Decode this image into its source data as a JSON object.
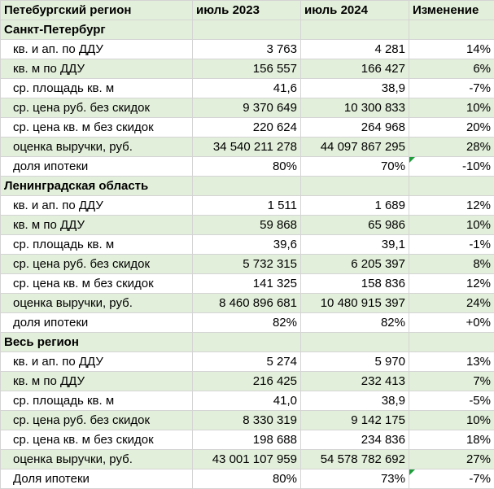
{
  "header": {
    "region": "Петебургский регион",
    "col_2023": "июль 2023",
    "col_2024": "июль 2024",
    "col_change": "Изменение"
  },
  "sections": [
    {
      "title": "Санкт-Петербург",
      "rows": [
        {
          "label": "кв. и ап. по ДДУ",
          "v2023": "3 763",
          "v2024": "4 281",
          "change": "14%"
        },
        {
          "label": "кв. м по ДДУ",
          "v2023": "156 557",
          "v2024": "166 427",
          "change": "6%"
        },
        {
          "label": "ср. площадь кв. м",
          "v2023": "41,6",
          "v2024": "38,9",
          "change": "-7%"
        },
        {
          "label": "ср. цена руб. без скидок",
          "v2023": "9 370 649",
          "v2024": "10 300 833",
          "change": "10%"
        },
        {
          "label": "ср. цена кв. м без скидок",
          "v2023": "220 624",
          "v2024": "264 968",
          "change": "20%"
        },
        {
          "label": "оценка выручки, руб.",
          "v2023": "34 540 211 278",
          "v2024": "44 097 867 295",
          "change": "28%"
        },
        {
          "label": "доля ипотеки",
          "v2023": "80%",
          "v2024": "70%",
          "change": "-10%"
        }
      ]
    },
    {
      "title": "Ленинградская область",
      "rows": [
        {
          "label": "кв. и ап. по ДДУ",
          "v2023": "1 511",
          "v2024": "1 689",
          "change": "12%"
        },
        {
          "label": "кв. м по ДДУ",
          "v2023": "59 868",
          "v2024": "65 986",
          "change": "10%"
        },
        {
          "label": "ср. площадь кв. м",
          "v2023": "39,6",
          "v2024": "39,1",
          "change": "-1%"
        },
        {
          "label": "ср. цена руб. без скидок",
          "v2023": "5 732 315",
          "v2024": "6 205 397",
          "change": "8%"
        },
        {
          "label": "ср. цена кв. м без скидок",
          "v2023": "141 325",
          "v2024": "158 836",
          "change": "12%"
        },
        {
          "label": "оценка выручки, руб.",
          "v2023": "8 460 896 681",
          "v2024": "10 480 915 397",
          "change": "24%"
        },
        {
          "label": "доля ипотеки",
          "v2023": "82%",
          "v2024": "82%",
          "change": "+0%"
        }
      ]
    },
    {
      "title": "Весь регион",
      "rows": [
        {
          "label": "кв. и ап. по ДДУ",
          "v2023": "5 274",
          "v2024": "5 970",
          "change": "13%"
        },
        {
          "label": "кв. м по ДДУ",
          "v2023": "216 425",
          "v2024": "232 413",
          "change": "7%"
        },
        {
          "label": "ср. площадь кв. м",
          "v2023": "41,0",
          "v2024": "38,9",
          "change": "-5%"
        },
        {
          "label": "ср. цена руб. без скидок",
          "v2023": "8 330 319",
          "v2024": "9 142 175",
          "change": "10%"
        },
        {
          "label": "ср. цена кв. м без скидок",
          "v2023": "198 688",
          "v2024": "234 836",
          "change": "18%"
        },
        {
          "label": "оценка выручки, руб.",
          "v2023": "43 001 107 959",
          "v2024": "54 578 782 692",
          "change": "27%"
        },
        {
          "label": "Доля ипотеки",
          "v2023": "80%",
          "v2024": "73%",
          "change": "-7%"
        }
      ]
    }
  ],
  "colors": {
    "green_band": "#e2efda",
    "grid": "#d4d4d4",
    "flag": "#1f9d3a"
  }
}
